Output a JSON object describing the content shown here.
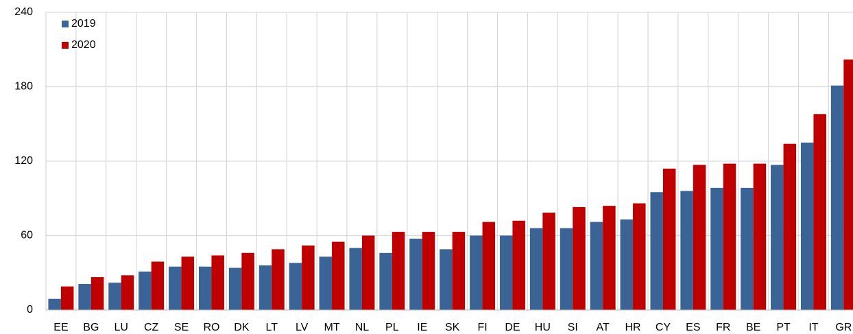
{
  "chart_data": {
    "type": "bar",
    "categories": [
      "EE",
      "BG",
      "LU",
      "CZ",
      "SE",
      "RO",
      "DK",
      "LT",
      "LV",
      "MT",
      "NL",
      "PL",
      "IE",
      "SK",
      "FI",
      "DE",
      "HU",
      "SI",
      "AT",
      "HR",
      "CY",
      "ES",
      "FR",
      "BE",
      "PT",
      "IT",
      "GR"
    ],
    "series": [
      {
        "name": "2019",
        "color": "#3b6496",
        "values": [
          9,
          21,
          22,
          31,
          35,
          35,
          34,
          36,
          38,
          43,
          50,
          46,
          57.5,
          49,
          60,
          60,
          66,
          66,
          71,
          73,
          95,
          96,
          98.5,
          98.5,
          117,
          135,
          181
        ]
      },
      {
        "name": "2020",
        "color": "#c00000",
        "values": [
          19,
          26.5,
          28,
          39,
          43,
          44,
          46,
          49,
          52,
          55,
          60,
          63,
          63,
          63,
          71,
          72,
          78.5,
          83,
          84,
          86,
          114,
          117,
          118,
          118,
          134,
          158,
          202
        ]
      }
    ],
    "ylim": [
      0,
      240
    ],
    "yticks": [
      0,
      60,
      120,
      180,
      240
    ],
    "grid": true,
    "legend": "top-left"
  }
}
